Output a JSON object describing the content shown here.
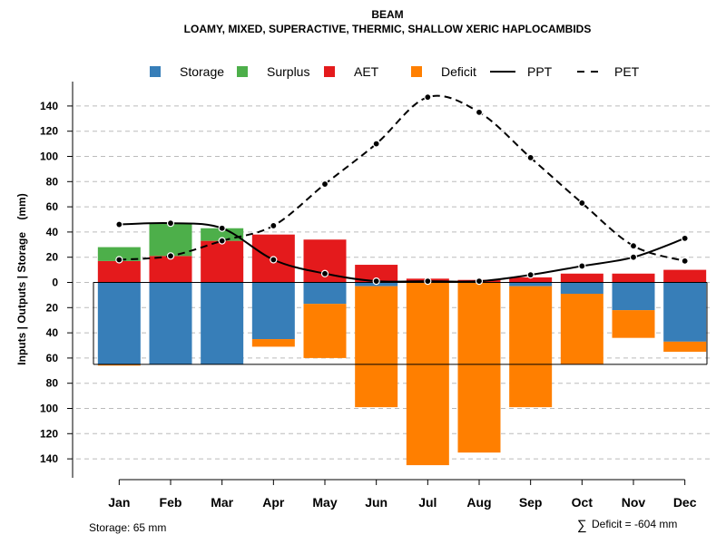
{
  "chart_data": {
    "type": "bar",
    "title": "BEAM",
    "subtitle": "LOAMY, MIXED, SUPERACTIVE, THERMIC, SHALLOW XERIC HAPLOCAMBIDS",
    "ylabel": "Inputs | Outputs | Storage    (mm)",
    "xlabel": "",
    "categories": [
      "Jan",
      "Feb",
      "Mar",
      "Apr",
      "May",
      "Jun",
      "Jul",
      "Aug",
      "Sep",
      "Oct",
      "Nov",
      "Dec"
    ],
    "ylim": [
      -150,
      150
    ],
    "yticks": [
      140,
      120,
      100,
      80,
      60,
      40,
      20,
      0,
      -20,
      -40,
      -60,
      -80,
      -100,
      -120,
      -140
    ],
    "ytick_labels": [
      "140",
      "120",
      "100",
      "80",
      "60",
      "40",
      "20",
      "0",
      "20",
      "40",
      "60",
      "80",
      "100",
      "120",
      "140"
    ],
    "grid": true,
    "legend": {
      "placement": "top",
      "items": [
        {
          "label": "Storage",
          "kind": "box",
          "color": "#377EB8"
        },
        {
          "label": "Surplus",
          "kind": "box",
          "color": "#4DAF4A"
        },
        {
          "label": "AET",
          "kind": "box",
          "color": "#E41A1C"
        },
        {
          "label": "Deficit",
          "kind": "box",
          "color": "#FF7F00"
        },
        {
          "label": "PPT",
          "kind": "line",
          "dash": "solid"
        },
        {
          "label": "PET",
          "kind": "line",
          "dash": "dashed"
        }
      ]
    },
    "series": [
      {
        "name": "AET",
        "color": "#E41A1C",
        "position": "above",
        "values": [
          17,
          21,
          33,
          38,
          34,
          14,
          3,
          2,
          4,
          7,
          7,
          10
        ]
      },
      {
        "name": "Surplus",
        "color": "#4DAF4A",
        "position": "above",
        "values": [
          11,
          26,
          10,
          0,
          0,
          0,
          0,
          0,
          0,
          0,
          0,
          0
        ]
      },
      {
        "name": "Storage",
        "color": "#377EB8",
        "position": "below",
        "values": [
          65,
          65,
          65,
          45,
          17,
          3,
          0,
          0,
          3,
          9,
          22,
          47
        ]
      },
      {
        "name": "Deficit",
        "color": "#FF7F00",
        "position": "below",
        "values": [
          1,
          0,
          0,
          6,
          43,
          96,
          145,
          135,
          96,
          56,
          22,
          8
        ]
      },
      {
        "name": "PPT",
        "type": "line",
        "dash": "solid",
        "values": [
          46,
          47,
          43,
          18,
          7,
          1,
          1,
          1,
          6,
          13,
          20,
          35
        ]
      },
      {
        "name": "PET",
        "type": "line",
        "dash": "dashed",
        "values": [
          18,
          21,
          33,
          45,
          78,
          110,
          147,
          135,
          99,
          63,
          29,
          17
        ]
      }
    ],
    "storage_capacity_line": 65,
    "annotations": {
      "storage_note": "Storage: 65 mm",
      "deficit_symbol": "∑",
      "deficit_note": "Deficit = -604 mm"
    }
  }
}
